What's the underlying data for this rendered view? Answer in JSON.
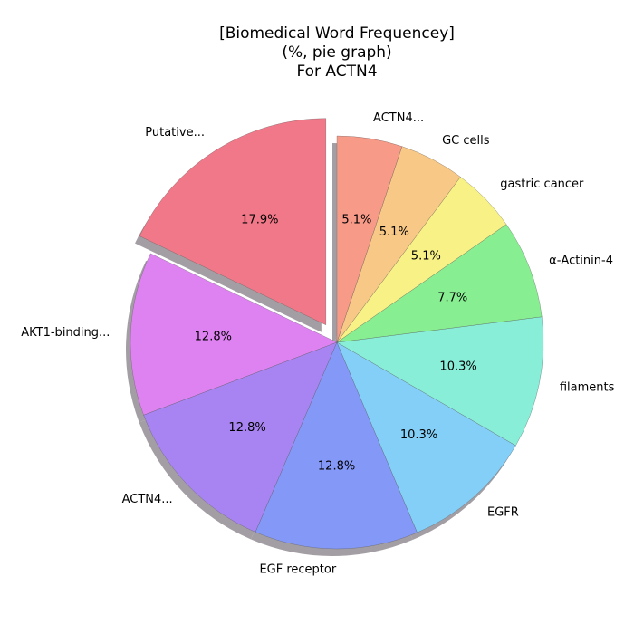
{
  "chart_data": {
    "type": "pie",
    "title_lines": [
      "[Biomedical Word Frequencey]",
      "(%, pie graph)",
      "For ACTN4"
    ],
    "slices": [
      {
        "label": "Putative...",
        "value": 17.9,
        "pct_label": "17.9%",
        "color": "#f07888",
        "exploded": true
      },
      {
        "label": "AKT1-binding...",
        "value": 12.8,
        "pct_label": "12.8%",
        "color": "#de82f2"
      },
      {
        "label": "ACTN4...",
        "value": 12.8,
        "pct_label": "12.8%",
        "color": "#a884f2"
      },
      {
        "label": "EGF receptor",
        "value": 12.8,
        "pct_label": "12.8%",
        "color": "#8498f7"
      },
      {
        "label": "EGFR",
        "value": 10.3,
        "pct_label": "10.3%",
        "color": "#84cff7"
      },
      {
        "label": "filaments",
        "value": 10.3,
        "pct_label": "10.3%",
        "color": "#88eed8"
      },
      {
        "label": "α-Actinin-4",
        "value": 7.7,
        "pct_label": "7.7%",
        "color": "#88ee92"
      },
      {
        "label": "gastric cancer",
        "value": 5.1,
        "pct_label": "5.1%",
        "color": "#f8f286"
      },
      {
        "label": "GC cells",
        "value": 5.1,
        "pct_label": "5.1%",
        "color": "#f8c886"
      },
      {
        "label": "ACTN4...",
        "value": 5.1,
        "pct_label": "5.1%",
        "color": "#f89a88"
      }
    ],
    "start_angle_deg": 90,
    "direction": "counterclockwise",
    "shadow": true
  }
}
